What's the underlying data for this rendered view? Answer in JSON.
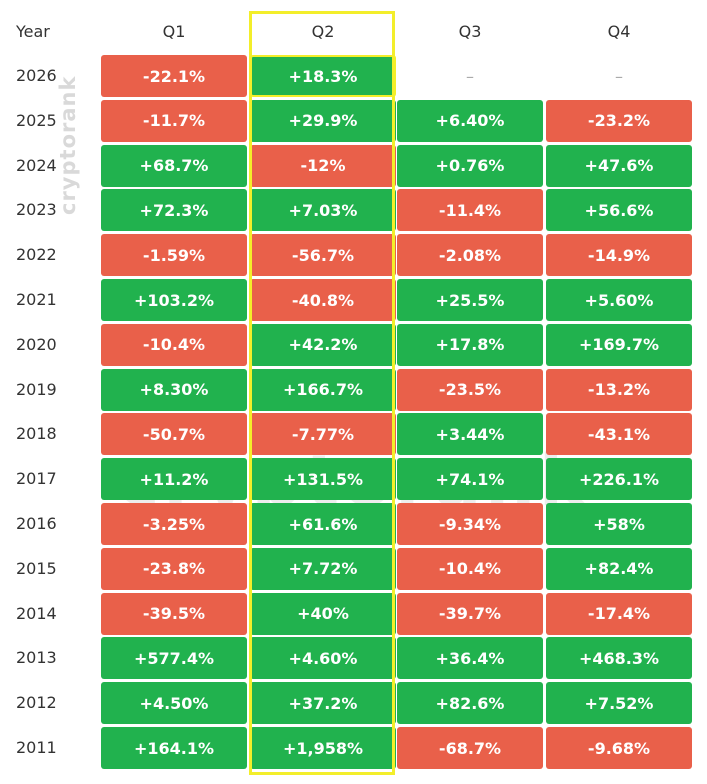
{
  "watermark": "cryptorank",
  "chart_data": {
    "type": "table",
    "header_label": "Year",
    "columns": [
      "Q1",
      "Q2",
      "Q3",
      "Q4"
    ],
    "highlighted_column": "Q2",
    "empty_marker": "–",
    "colors": {
      "positive": "#21b24e",
      "negative": "#e9604a",
      "highlight": "#f3ee2a"
    },
    "rows": [
      {
        "year": "2026",
        "values": [
          "-22.1%",
          "+18.3%",
          "–",
          "–"
        ]
      },
      {
        "year": "2025",
        "values": [
          "-11.7%",
          "+29.9%",
          "+6.40%",
          "-23.2%"
        ]
      },
      {
        "year": "2024",
        "values": [
          "+68.7%",
          "-12%",
          "+0.76%",
          "+47.6%"
        ]
      },
      {
        "year": "2023",
        "values": [
          "+72.3%",
          "+7.03%",
          "-11.4%",
          "+56.6%"
        ]
      },
      {
        "year": "2022",
        "values": [
          "-1.59%",
          "-56.7%",
          "-2.08%",
          "-14.9%"
        ]
      },
      {
        "year": "2021",
        "values": [
          "+103.2%",
          "-40.8%",
          "+25.5%",
          "+5.60%"
        ]
      },
      {
        "year": "2020",
        "values": [
          "-10.4%",
          "+42.2%",
          "+17.8%",
          "+169.7%"
        ]
      },
      {
        "year": "2019",
        "values": [
          "+8.30%",
          "+166.7%",
          "-23.5%",
          "-13.2%"
        ]
      },
      {
        "year": "2018",
        "values": [
          "-50.7%",
          "-7.77%",
          "+3.44%",
          "-43.1%"
        ]
      },
      {
        "year": "2017",
        "values": [
          "+11.2%",
          "+131.5%",
          "+74.1%",
          "+226.1%"
        ]
      },
      {
        "year": "2016",
        "values": [
          "-3.25%",
          "+61.6%",
          "-9.34%",
          "+58%"
        ]
      },
      {
        "year": "2015",
        "values": [
          "-23.8%",
          "+7.72%",
          "-10.4%",
          "+82.4%"
        ]
      },
      {
        "year": "2014",
        "values": [
          "-39.5%",
          "+40%",
          "-39.7%",
          "-17.4%"
        ]
      },
      {
        "year": "2013",
        "values": [
          "+577.4%",
          "+4.60%",
          "+36.4%",
          "+468.3%"
        ]
      },
      {
        "year": "2012",
        "values": [
          "+4.50%",
          "+37.2%",
          "+82.6%",
          "+7.52%"
        ]
      },
      {
        "year": "2011",
        "values": [
          "+164.1%",
          "+1,958%",
          "-68.7%",
          "-9.68%"
        ]
      }
    ]
  }
}
